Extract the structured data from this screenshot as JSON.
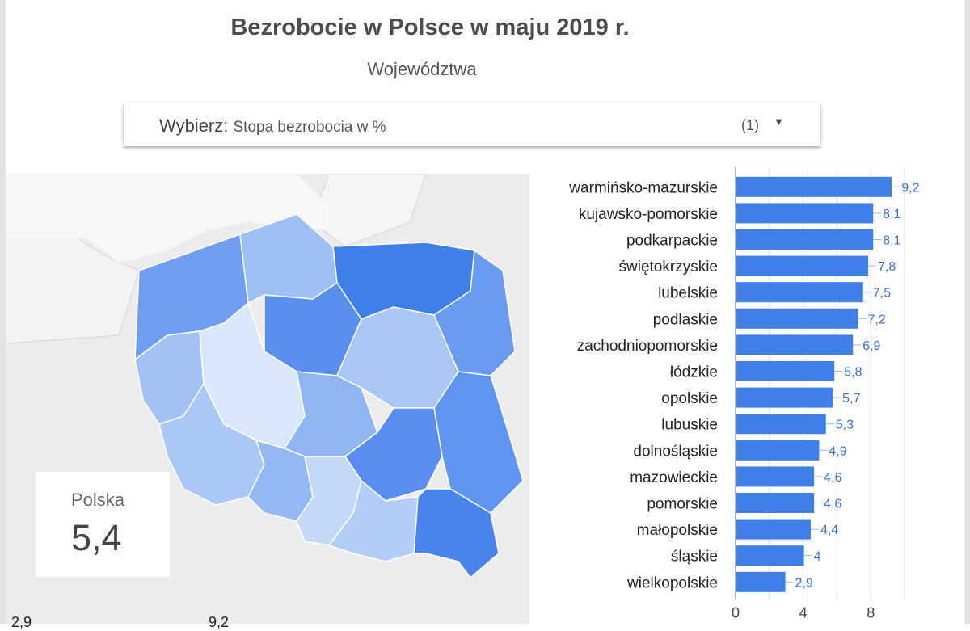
{
  "header": {
    "title": "Bezrobocie w Polsce w maju 2019 r.",
    "subtitle": "Województwa"
  },
  "selector": {
    "label": "Wybierz",
    "value": "Stopa bezrobocia w %",
    "count": "(1)",
    "caret": "▼"
  },
  "kpi": {
    "name": "Polska",
    "value": "5,4"
  },
  "map_legend": {
    "min": "2,9",
    "max": "9,2"
  },
  "colors": {
    "bar": "#3f7fe8",
    "value_label": "#3b6fd6",
    "map_background": "#ececec"
  },
  "chart_data": {
    "type": "bar",
    "orientation": "horizontal",
    "categories": [
      "warmińsko-mazurskie",
      "kujawsko-pomorskie",
      "podkarpackie",
      "świętokrzyskie",
      "lubelskie",
      "podlaskie",
      "zachodniopomorskie",
      "łódzkie",
      "opolskie",
      "lubuskie",
      "dolnośląskie",
      "mazowieckie",
      "pomorskie",
      "małopolskie",
      "śląskie",
      "wielkopolskie"
    ],
    "values": [
      9.2,
      8.1,
      8.1,
      7.8,
      7.5,
      7.2,
      6.9,
      5.8,
      5.7,
      5.3,
      4.9,
      4.6,
      4.6,
      4.4,
      4,
      2.9
    ],
    "value_labels": [
      "9,2",
      "8,1",
      "8,1",
      "7,8",
      "7,5",
      "7,2",
      "6,9",
      "5,8",
      "5,7",
      "5,3",
      "4,9",
      "4,6",
      "4,6",
      "4,4",
      "4",
      "2,9"
    ],
    "x_ticks": [
      0,
      4,
      8
    ],
    "xlim": [
      0,
      10
    ],
    "grid": true
  }
}
